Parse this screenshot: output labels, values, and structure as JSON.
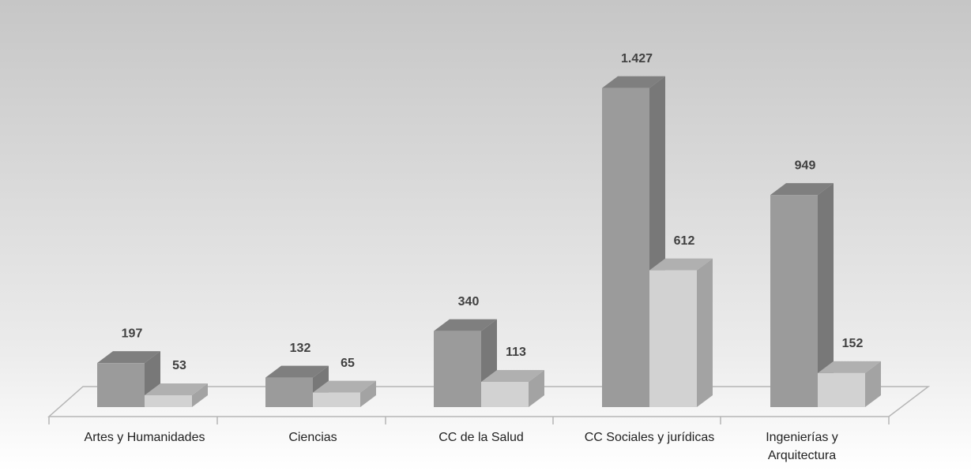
{
  "chart_data": {
    "type": "bar3d",
    "categories": [
      "Artes y Humanidades",
      "Ciencias",
      "CC de la Salud",
      "CC Sociales y jurídicas",
      "Ingenierías y\nArquitectura"
    ],
    "series": [
      {
        "color": "#9b9b9b",
        "top_color": "#7f7f7f",
        "side_color": "#787878",
        "values": [
          197,
          132,
          340,
          1427,
          949
        ],
        "value_labels": [
          "197",
          "132",
          "340",
          "1.427",
          "949"
        ]
      },
      {
        "color": "#d2d2d2",
        "top_color": "#b0b0b0",
        "side_color": "#a3a3a3",
        "values": [
          53,
          65,
          113,
          612,
          152
        ]
      }
    ],
    "ylim": [
      0,
      1500
    ]
  }
}
